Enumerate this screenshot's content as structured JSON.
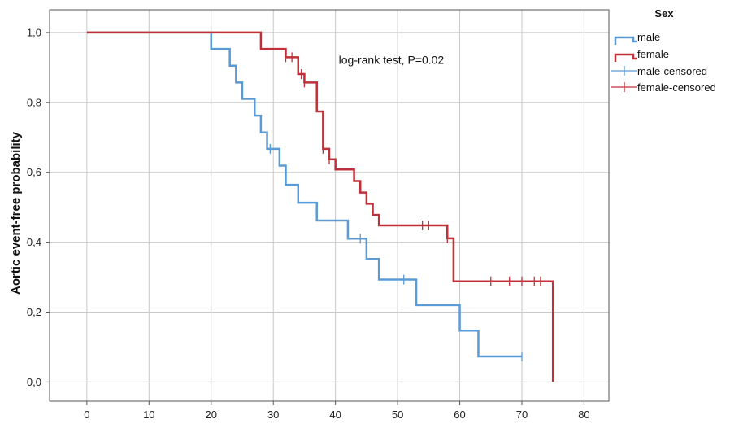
{
  "chart_data": {
    "type": "line",
    "subtype": "kaplan-meier step",
    "title": "",
    "xlabel": "",
    "ylabel": "Aortic event-free probability",
    "xlim": [
      -6,
      84
    ],
    "ylim": [
      -0.055,
      1.065
    ],
    "xticks": [
      0,
      10,
      20,
      30,
      40,
      50,
      60,
      70,
      80
    ],
    "xtick_labels": [
      "0",
      "10",
      "20",
      "30",
      "40",
      "50",
      "60",
      "70",
      "80"
    ],
    "yticks": [
      0.0,
      0.2,
      0.4,
      0.6,
      0.8,
      1.0
    ],
    "ytick_labels": [
      "0,0",
      "0,2",
      "0,4",
      "0,6",
      "0,8",
      "1,0"
    ],
    "grid": true,
    "legend": {
      "title": "Sex",
      "placement": "top-right outside",
      "entries": [
        "male",
        "female",
        "male-censored",
        "female-censored"
      ]
    },
    "annotations": [
      {
        "text": "log-rank test, P=0.02",
        "x": 49,
        "y": 0.91
      }
    ],
    "colors": {
      "male": "#5b9bd5",
      "female": "#c0303a"
    },
    "series": [
      {
        "name": "male",
        "color": "#5b9bd5",
        "steps": [
          [
            0,
            1.0
          ],
          [
            20,
            0.953
          ],
          [
            23,
            0.905
          ],
          [
            24,
            0.857
          ],
          [
            25,
            0.81
          ],
          [
            27,
            0.762
          ],
          [
            28,
            0.714
          ],
          [
            29,
            0.667
          ],
          [
            31,
            0.619
          ],
          [
            32,
            0.564
          ],
          [
            34,
            0.513
          ],
          [
            37,
            0.462
          ],
          [
            42,
            0.41
          ],
          [
            45,
            0.352
          ],
          [
            47,
            0.293
          ],
          [
            53,
            0.22
          ],
          [
            60,
            0.147
          ],
          [
            63,
            0.073
          ],
          [
            70,
            0.073
          ]
        ],
        "censored": [
          [
            29.5,
            0.667
          ],
          [
            44,
            0.41
          ],
          [
            51,
            0.293
          ],
          [
            70,
            0.073
          ]
        ]
      },
      {
        "name": "female",
        "color": "#c0303a",
        "steps": [
          [
            0,
            1.0
          ],
          [
            28,
            0.953
          ],
          [
            32,
            0.929
          ],
          [
            34,
            0.881
          ],
          [
            35,
            0.857
          ],
          [
            37,
            0.774
          ],
          [
            38,
            0.667
          ],
          [
            39,
            0.637
          ],
          [
            40,
            0.608
          ],
          [
            43,
            0.575
          ],
          [
            44,
            0.542
          ],
          [
            45,
            0.51
          ],
          [
            46,
            0.478
          ],
          [
            47,
            0.448
          ],
          [
            58,
            0.411
          ],
          [
            59,
            0.288
          ],
          [
            75,
            0.288
          ],
          [
            75,
            0.0
          ]
        ],
        "censored": [
          [
            32,
            0.929
          ],
          [
            33,
            0.929
          ],
          [
            34.5,
            0.881
          ],
          [
            35,
            0.857
          ],
          [
            38,
            0.667
          ],
          [
            39,
            0.637
          ],
          [
            54,
            0.448
          ],
          [
            55,
            0.448
          ],
          [
            58,
            0.411
          ],
          [
            65,
            0.288
          ],
          [
            68,
            0.288
          ],
          [
            70,
            0.288
          ],
          [
            72,
            0.288
          ],
          [
            73,
            0.288
          ]
        ]
      }
    ]
  }
}
